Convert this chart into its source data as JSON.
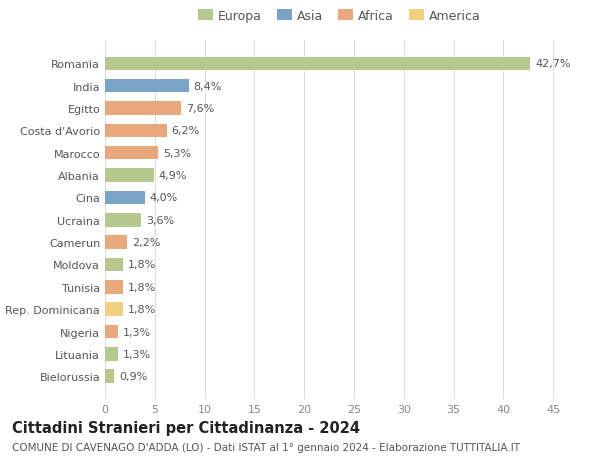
{
  "countries": [
    "Romania",
    "India",
    "Egitto",
    "Costa d'Avorio",
    "Marocco",
    "Albania",
    "Cina",
    "Ucraina",
    "Camerun",
    "Moldova",
    "Tunisia",
    "Rep. Dominicana",
    "Nigeria",
    "Lituania",
    "Bielorussia"
  ],
  "values": [
    42.7,
    8.4,
    7.6,
    6.2,
    5.3,
    4.9,
    4.0,
    3.6,
    2.2,
    1.8,
    1.8,
    1.8,
    1.3,
    1.3,
    0.9
  ],
  "labels": [
    "42,7%",
    "8,4%",
    "7,6%",
    "6,2%",
    "5,3%",
    "4,9%",
    "4,0%",
    "3,6%",
    "2,2%",
    "1,8%",
    "1,8%",
    "1,8%",
    "1,3%",
    "1,3%",
    "0,9%"
  ],
  "colors": [
    "#b5c98e",
    "#7ba3c8",
    "#e8a87c",
    "#e8a87c",
    "#e8a87c",
    "#b5c98e",
    "#7ba3c8",
    "#b5c98e",
    "#e8a87c",
    "#b5c98e",
    "#e8a87c",
    "#f0d080",
    "#e8a87c",
    "#b5c98e",
    "#b5c98e"
  ],
  "legend_labels": [
    "Europa",
    "Asia",
    "Africa",
    "America"
  ],
  "legend_colors": [
    "#b5c98e",
    "#7ba3c8",
    "#e8a87c",
    "#f0d080"
  ],
  "title": "Cittadini Stranieri per Cittadinanza - 2024",
  "subtitle": "COMUNE DI CAVENAGO D'ADDA (LO) - Dati ISTAT al 1° gennaio 2024 - Elaborazione TUTTITALIA.IT",
  "xlim": [
    0,
    47
  ],
  "xticks": [
    0,
    5,
    10,
    15,
    20,
    25,
    30,
    35,
    40,
    45
  ],
  "background_color": "#ffffff",
  "grid_color": "#dddddd",
  "bar_height": 0.6,
  "title_fontsize": 10.5,
  "subtitle_fontsize": 7.5,
  "tick_label_fontsize": 8,
  "bar_label_fontsize": 8,
  "legend_fontsize": 9
}
